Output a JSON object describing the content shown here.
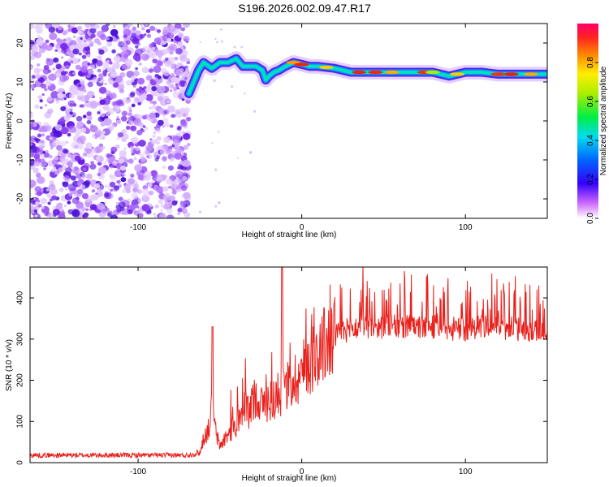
{
  "title": "S196.2026.002.09.47.R17",
  "colors": {
    "trace": "#e8211c",
    "frame": "#000000",
    "ridge": "#00c8ff"
  },
  "chart_data": [
    {
      "type": "heatmap",
      "name": "spectrogram",
      "xlabel": "Height of straight line (km)",
      "ylabel": "Frequency (Hz)",
      "xlim": [
        -166,
        150
      ],
      "ylim": [
        -25,
        25
      ],
      "xticks": [
        -100,
        0,
        100
      ],
      "yticks": [
        -20,
        -10,
        0,
        10,
        20
      ],
      "ridge": {
        "x": [
          -69,
          -66,
          -63,
          -60,
          -55,
          -50,
          -45,
          -40,
          -36,
          -32,
          -28,
          -24,
          -22,
          -20,
          -17,
          -14,
          -10,
          -5,
          0,
          5,
          10,
          20,
          30,
          40,
          50,
          60,
          70,
          80,
          85,
          90,
          95,
          100,
          110,
          120,
          130,
          140,
          150
        ],
        "y": [
          7,
          10,
          13,
          15,
          13.5,
          15,
          15,
          16,
          14,
          14,
          14,
          13,
          10.5,
          11.5,
          12.5,
          13,
          14,
          15,
          14.5,
          14,
          14,
          13.5,
          12.5,
          12.5,
          12.5,
          12.5,
          12.5,
          12.5,
          12,
          11.5,
          12,
          12.5,
          12.5,
          12,
          12,
          12,
          12
        ]
      },
      "colorbar": {
        "label": "Normalized spectral amplitude",
        "range": [
          0,
          1
        ],
        "ticks": [
          "0.0",
          "0.2",
          "0.4",
          "0.6",
          "0.8"
        ]
      }
    },
    {
      "type": "line",
      "name": "snr",
      "xlabel": "Height of straight line (km)",
      "ylabel": "SNR (10 * v/v)",
      "xlim": [
        -166,
        150
      ],
      "ylim": [
        0,
        475
      ],
      "xticks": [
        -100,
        0,
        100
      ],
      "yticks": [
        0,
        100,
        200,
        300,
        400
      ],
      "envelope": {
        "x": [
          -166,
          -70,
          -62,
          -60,
          -57,
          -55,
          -52,
          -50,
          -45,
          -42,
          -40,
          -37,
          -35,
          -32,
          -28,
          -25,
          -20,
          -15,
          -10,
          -5,
          0,
          5,
          10,
          15,
          20,
          25,
          30,
          40,
          50,
          60,
          70,
          80,
          90,
          100,
          110,
          120,
          130,
          140,
          150
        ],
        "y": [
          18,
          18,
          25,
          60,
          80,
          130,
          65,
          40,
          70,
          85,
          70,
          110,
          140,
          120,
          170,
          140,
          150,
          160,
          180,
          200,
          220,
          250,
          270,
          290,
          305,
          318,
          325,
          330,
          330,
          330,
          328,
          330,
          325,
          322,
          328,
          330,
          325,
          322,
          325
        ]
      },
      "peaks": {
        "x": [
          -54.5,
          -33,
          -12
        ],
        "y": [
          330,
          160,
          475
        ]
      }
    }
  ]
}
